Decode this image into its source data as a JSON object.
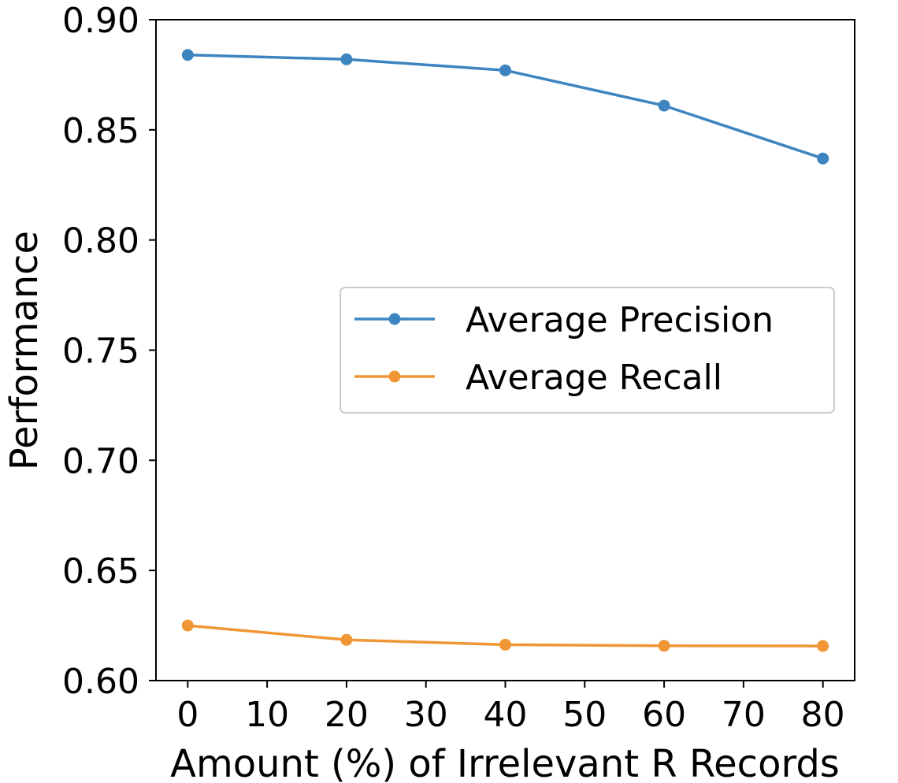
{
  "chart_data": {
    "type": "line",
    "title": "",
    "xlabel": "Amount (%) of Irrelevant R Records",
    "ylabel": "Performance",
    "x": [
      0,
      20,
      40,
      60,
      80
    ],
    "xlim": [
      -4,
      84
    ],
    "ylim": [
      0.6,
      0.9
    ],
    "xticks": [
      0,
      10,
      20,
      30,
      40,
      50,
      60,
      70,
      80
    ],
    "xtick_labels": [
      "0",
      "10",
      "20",
      "30",
      "40",
      "50",
      "60",
      "70",
      "80"
    ],
    "yticks": [
      0.6,
      0.65,
      0.7,
      0.75,
      0.8,
      0.85,
      0.9
    ],
    "ytick_labels": [
      "0.60",
      "0.65",
      "0.70",
      "0.75",
      "0.80",
      "0.85",
      "0.90"
    ],
    "grid": false,
    "legend_position": "center-right",
    "series": [
      {
        "name": "Average Precision",
        "color": "#3d85c0",
        "values": [
          0.884,
          0.882,
          0.877,
          0.861,
          0.837
        ]
      },
      {
        "name": "Average Recall",
        "color": "#f09636",
        "values": [
          0.625,
          0.6185,
          0.6163,
          0.6158,
          0.6157
        ]
      }
    ]
  }
}
